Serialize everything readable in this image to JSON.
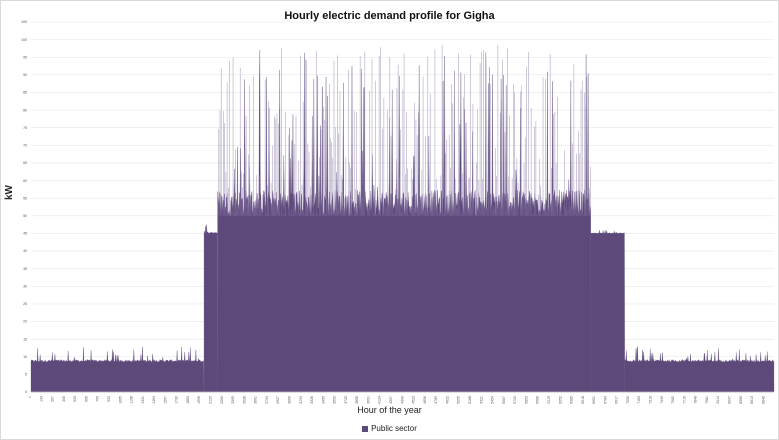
{
  "chart_data": {
    "type": "area",
    "title": "Hourly electric demand profile for Gigha",
    "xlabel": "Hour of the year",
    "ylabel": "kW",
    "xlim": [
      1,
      8760
    ],
    "ylim": [
      0,
      105
    ],
    "yticks": [
      0,
      5,
      10,
      15,
      20,
      25,
      30,
      35,
      40,
      45,
      50,
      55,
      60,
      65,
      70,
      75,
      80,
      85,
      90,
      95,
      100,
      105
    ],
    "xtick_step": 133,
    "grid": true,
    "legend_position": "bottom",
    "series": [
      {
        "name": "Public sector",
        "color": "#5e4a7a",
        "profile_segments": [
          {
            "hours": [
              1,
              2040
            ],
            "base_kW": 8.5,
            "peak_kW": 13
          },
          {
            "hours": [
              2041,
              2200
            ],
            "base_kW": 45,
            "peak_kW": 48
          },
          {
            "hours": [
              2201,
              6600
            ],
            "base_kW": 50,
            "peak_kW": 99
          },
          {
            "hours": [
              6601,
              7000
            ],
            "base_kW": 45,
            "peak_kW": 46
          },
          {
            "hours": [
              7001,
              8760
            ],
            "base_kW": 8.5,
            "peak_kW": 13
          }
        ]
      }
    ]
  }
}
